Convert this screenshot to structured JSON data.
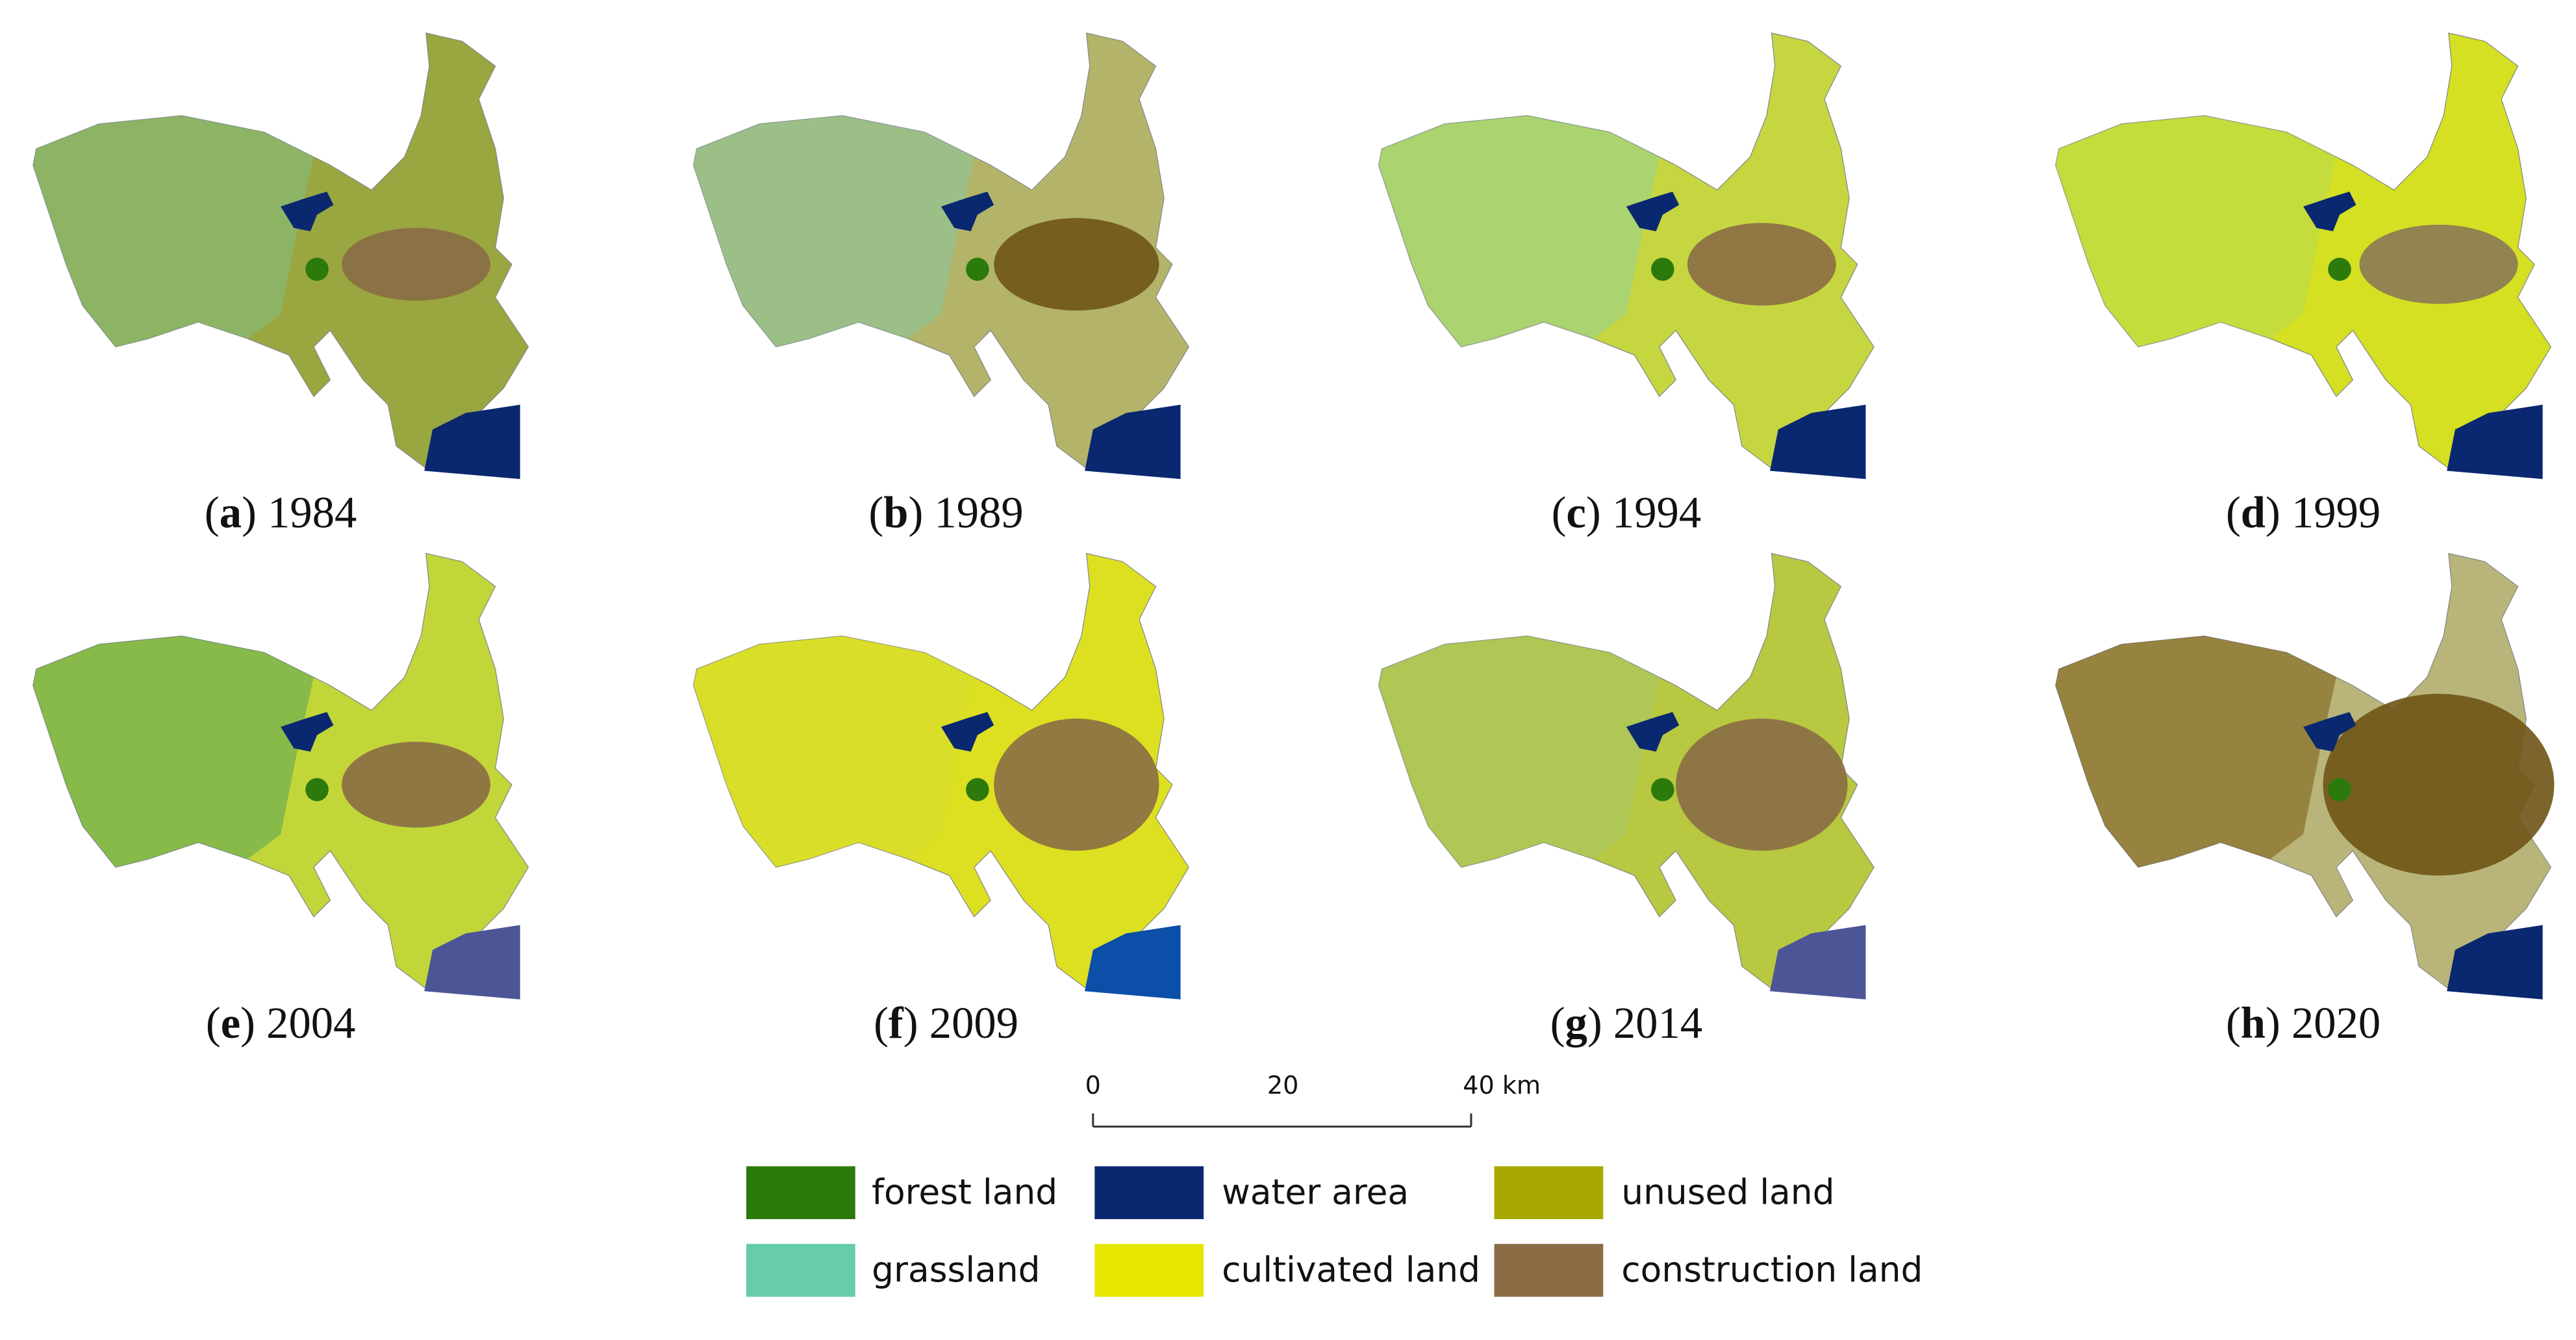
{
  "panels": [
    {
      "caption": [
        "(",
        "a",
        ") 1984"
      ]
    },
    {
      "caption": [
        "(",
        "b",
        ") 1989"
      ]
    },
    {
      "caption": [
        "(",
        "c",
        ") 1994"
      ]
    },
    {
      "caption": [
        "(",
        "d",
        ") 1999"
      ]
    },
    {
      "caption": [
        "(",
        "e",
        ") 2004"
      ]
    },
    {
      "caption": [
        "(",
        "f",
        ") 2009"
      ]
    },
    {
      "caption": [
        "(",
        "g",
        ") 2014"
      ]
    },
    {
      "caption": [
        "(",
        "h",
        ") 2020"
      ]
    }
  ],
  "scale_bar": {
    "ticks": [
      "0",
      "20",
      "40 km"
    ]
  },
  "legend": [
    {
      "label": "forest land",
      "color": "#2b7a0b"
    },
    {
      "label": "grassland",
      "color": "#66ccaa"
    },
    {
      "label": "water area",
      "color": "#0a2870"
    },
    {
      "label": "cultivated land",
      "color": "#e6e600"
    },
    {
      "label": "unused land",
      "color": "#a8a800"
    },
    {
      "label": "construction land",
      "color": "#8a6d45"
    }
  ]
}
